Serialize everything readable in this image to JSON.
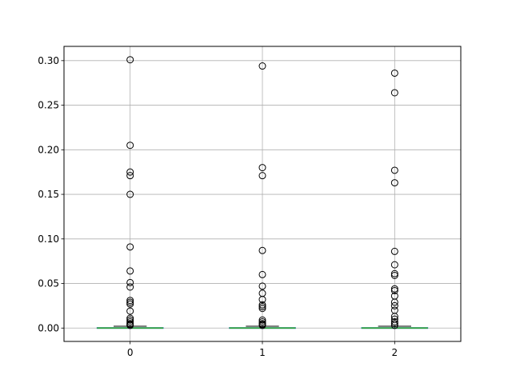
{
  "chart_data": {
    "type": "box",
    "title": "",
    "xlabel": "",
    "ylabel": "",
    "categories": [
      "0",
      "1",
      "2"
    ],
    "ylim": [
      -0.015,
      0.316
    ],
    "yticks": [
      0.0,
      0.05,
      0.1,
      0.15,
      0.2,
      0.25,
      0.3
    ],
    "ytick_labels": [
      "0.00",
      "0.05",
      "0.10",
      "0.15",
      "0.20",
      "0.25",
      "0.30"
    ],
    "grid": true,
    "colors": {
      "box": "#1f77b4",
      "median": "#2ca02c",
      "whisker": "#000000",
      "flier": "#000000",
      "grid": "#b0b0b0"
    },
    "boxes": [
      {
        "name": "0",
        "whislo": 0.0,
        "q1": 0.0,
        "median": 0.0,
        "q3": 0.0005,
        "whishi": 0.002,
        "fliers": [
          0.301,
          0.205,
          0.175,
          0.171,
          0.15,
          0.091,
          0.064,
          0.051,
          0.046,
          0.031,
          0.029,
          0.027,
          0.019,
          0.011,
          0.009,
          0.007,
          0.005,
          0.004,
          0.003
        ]
      },
      {
        "name": "1",
        "whislo": 0.0,
        "q1": 0.0,
        "median": 0.0,
        "q3": 0.0005,
        "whishi": 0.002,
        "fliers": [
          0.294,
          0.18,
          0.171,
          0.087,
          0.06,
          0.047,
          0.039,
          0.032,
          0.026,
          0.024,
          0.022,
          0.009,
          0.007,
          0.005,
          0.004,
          0.003
        ]
      },
      {
        "name": "2",
        "whislo": 0.0,
        "q1": 0.0,
        "median": 0.0,
        "q3": 0.0005,
        "whishi": 0.002,
        "fliers": [
          0.286,
          0.264,
          0.177,
          0.163,
          0.086,
          0.071,
          0.061,
          0.059,
          0.044,
          0.042,
          0.036,
          0.029,
          0.025,
          0.02,
          0.013,
          0.01,
          0.007,
          0.005,
          0.003
        ]
      }
    ]
  }
}
